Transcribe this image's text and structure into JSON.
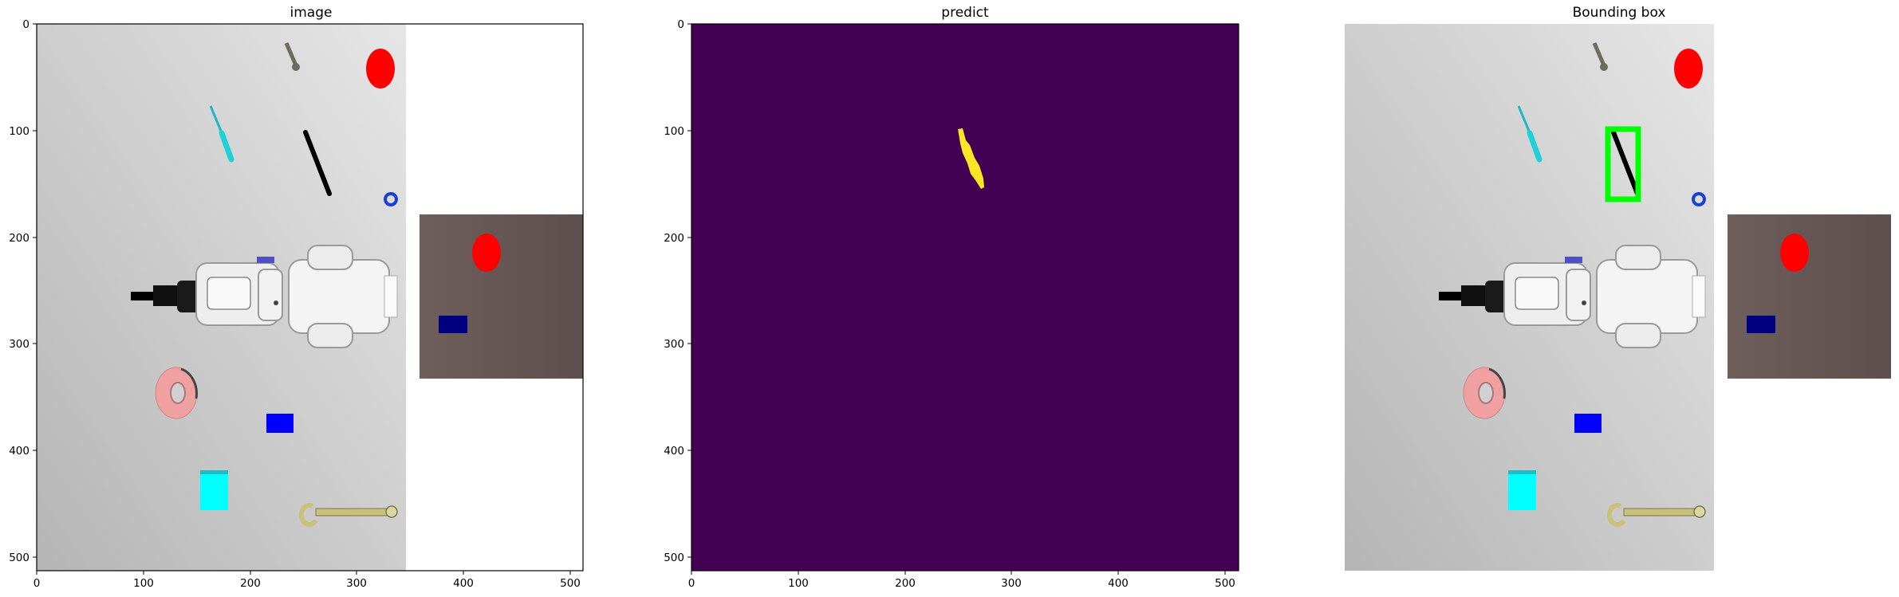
{
  "figure": {
    "panels": [
      {
        "title": "image",
        "x_ticks": [
          "0",
          "100",
          "200",
          "300",
          "400",
          "500"
        ],
        "y_ticks": [
          "0",
          "100",
          "200",
          "300",
          "400",
          "500"
        ],
        "show_axes": true
      },
      {
        "title": "predict",
        "x_ticks": [
          "0",
          "100",
          "200",
          "300",
          "400",
          "500"
        ],
        "y_ticks": [
          "0",
          "100",
          "200",
          "300",
          "400",
          "500"
        ],
        "show_axes": true
      },
      {
        "title": "Bounding box",
        "show_axes": false
      }
    ],
    "colors": {
      "table_light": "#d9d9d9",
      "table_dark": "#b7b7b7",
      "side_table": "#6b5a58",
      "predict_background": "#440154",
      "predict_mask": "#fde725",
      "bbox": "#00ff00",
      "red_ball": "#ff0000",
      "blue_block": "#0000ff",
      "cyan_block": "#00ffff",
      "navy_block": "#000080",
      "pink_ring": "#f0a0a0"
    },
    "scene_objects": [
      "wrench-icon",
      "screwdriver-icon",
      "black-rod",
      "red-ball",
      "blue-hex-nut",
      "robot-arm",
      "pink-ring",
      "blue-block",
      "cyan-block",
      "side-table-red-ball",
      "side-table-navy-block",
      "socket-wrench-icon"
    ]
  }
}
